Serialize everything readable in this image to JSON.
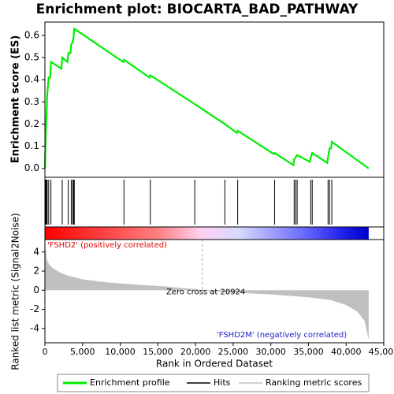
{
  "chart_data": [
    {
      "type": "line",
      "title": "Enrichment plot: BIOCARTA_BAD_PATHWAY",
      "ylabel": "Enrichment score (ES)",
      "xlim": [
        0,
        45000
      ],
      "ylim": [
        -0.04,
        0.66
      ],
      "yticks": [
        {
          "value": 0,
          "label": "0.0"
        },
        0.1,
        0.2,
        0.3,
        0.4,
        0.5,
        0.6
      ],
      "x": [
        0,
        100,
        200,
        300,
        500,
        700,
        800,
        2200,
        2300,
        3000,
        3100,
        3400,
        3500,
        3700,
        3800,
        3900,
        10400,
        10500,
        13900,
        14000,
        19900,
        23900,
        25500,
        25600,
        30400,
        30500,
        33000,
        33100,
        33300,
        33500,
        35200,
        35300,
        35500,
        37500,
        37600,
        37800,
        38000,
        38100,
        43000
      ],
      "series": [
        {
          "name": "Enrichment profile",
          "color": "#00ee00",
          "values": [
            0,
            0.13,
            0.23,
            0.33,
            0.41,
            0.41,
            0.48,
            0.45,
            0.5,
            0.48,
            0.52,
            0.52,
            0.56,
            0.57,
            0.59,
            0.63,
            0.48,
            0.49,
            0.41,
            0.42,
            0.29,
            0.2,
            0.16,
            0.17,
            0.065,
            0.07,
            0.015,
            0.04,
            0.05,
            0.06,
            0.03,
            0.05,
            0.07,
            0.025,
            0.05,
            0.09,
            0.09,
            0.12,
            0
          ]
        }
      ]
    },
    {
      "type": "rug",
      "xlim": [
        0,
        45000
      ],
      "series": [
        {
          "name": "Hits",
          "color": "#000000",
          "values": [
            100,
            200,
            300,
            500,
            800,
            2300,
            3100,
            3500,
            3700,
            3800,
            3900,
            10500,
            14000,
            19900,
            23900,
            25600,
            30500,
            33100,
            33300,
            33500,
            35300,
            35500,
            37600,
            37800,
            38100
          ]
        }
      ]
    },
    {
      "type": "area",
      "ylabel": "Ranked list metric (Signal2Noise)",
      "xlabel": "Rank in Ordered Dataset",
      "xlim": [
        0,
        45000
      ],
      "ylim": [
        -5.5,
        5.3
      ],
      "yticks": [
        4,
        2,
        0,
        -2,
        -4
      ],
      "xticks": [
        0,
        {
          "value": 5000,
          "label": "5,000"
        },
        {
          "value": 10000,
          "label": "10,000"
        },
        {
          "value": 15000,
          "label": "15,000"
        },
        {
          "value": 20000,
          "label": "20,000"
        },
        {
          "value": 25000,
          "label": "25,000"
        },
        {
          "value": 30000,
          "label": "30,000"
        },
        {
          "value": 35000,
          "label": "35,000"
        },
        {
          "value": 40000,
          "label": "40,000"
        },
        {
          "value": 45000,
          "label": "45,000"
        }
      ],
      "x": [
        0,
        200,
        500,
        1000,
        2000,
        3000,
        5000,
        8000,
        12000,
        16000,
        20924,
        25000,
        30000,
        35000,
        38000,
        40000,
        41500,
        42500,
        43000
      ],
      "series": [
        {
          "name": "Ranking metric scores",
          "color": "#c0c0c0",
          "values": [
            4.6,
            3.2,
            2.7,
            2.3,
            1.8,
            1.5,
            1.1,
            0.8,
            0.55,
            0.35,
            0,
            -0.2,
            -0.4,
            -0.7,
            -1.0,
            -1.5,
            -2.2,
            -3.2,
            -5.0
          ]
        }
      ],
      "zero_cross": {
        "value": 20924,
        "label": "Zero cross at 20924"
      },
      "annotations": [
        "'FSHD2' (positively correlated)",
        "'FSHD2M' (negatively correlated)"
      ]
    }
  ]
}
